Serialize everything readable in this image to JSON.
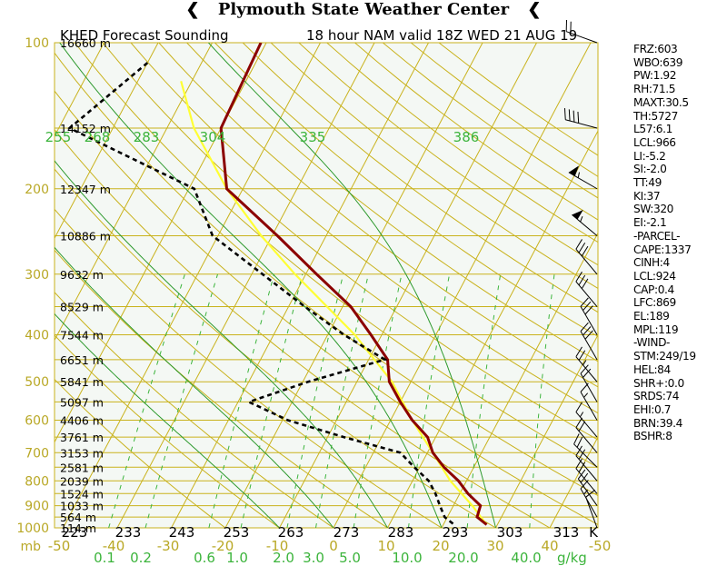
{
  "header": {
    "title": "Plymouth State Weather Center",
    "left_icon": "tornado-icon",
    "right_icon": "tornado-icon"
  },
  "plot_title_left": "KHED Forecast Sounding",
  "plot_title_right": "18 hour NAM valid 18Z WED 21 AUG 19",
  "colors": {
    "grid": "#c9b21c",
    "axis_label": "#b9a826",
    "theta": "#2e9a2e",
    "theta_label": "#3cb43c",
    "mixing": "#3cb43c",
    "temperature": "#8b0000",
    "dewpoint": "#000000",
    "parcel": "#ffff33",
    "background": "#f4f8f4"
  },
  "chart_data": {
    "type": "line",
    "diagram": "skew-t log-p",
    "pressure_levels_mb": [
      100,
      200,
      300,
      400,
      500,
      600,
      700,
      800,
      900,
      1000
    ],
    "pressure_labels": [
      "100",
      "200",
      "300",
      "400",
      "500",
      "600",
      "700",
      "800",
      "900",
      "1000"
    ],
    "pressure_axis_label": "mb",
    "temperature_ticks": [
      "-50",
      "-40",
      "-30",
      "-20",
      "-10",
      "0",
      "10",
      "20",
      "30",
      "40",
      "-50"
    ],
    "kelvin_ticks": [
      "223",
      "233",
      "243",
      "253",
      "263",
      "273",
      "283",
      "293",
      "303",
      "313"
    ],
    "kelvin_unit": "K",
    "theta_labels": [
      "255",
      "268",
      "283",
      "304",
      "335",
      "386"
    ],
    "mixing_ratio_ticks": [
      "0.1",
      "0.2",
      "0.6",
      "1.0",
      "2.0",
      "3.0",
      "5.0",
      "10.0",
      "20.0",
      "40.0"
    ],
    "mixing_ratio_unit": "g/kg",
    "height_labels": [
      {
        "p": 100,
        "label": "16660 m"
      },
      {
        "p": 150,
        "label": "14152 m"
      },
      {
        "p": 200,
        "label": "12347 m"
      },
      {
        "p": 250,
        "label": "10886 m"
      },
      {
        "p": 300,
        "label": "9632 m"
      },
      {
        "p": 350,
        "label": "8529 m"
      },
      {
        "p": 400,
        "label": "7544 m"
      },
      {
        "p": 450,
        "label": "6651 m"
      },
      {
        "p": 500,
        "label": "5841 m"
      },
      {
        "p": 550,
        "label": "5097 m"
      },
      {
        "p": 600,
        "label": "4406 m"
      },
      {
        "p": 650,
        "label": "3761 m"
      },
      {
        "p": 700,
        "label": "3153 m"
      },
      {
        "p": 750,
        "label": "2581 m"
      },
      {
        "p": 800,
        "label": "2039 m"
      },
      {
        "p": 850,
        "label": "1524 m"
      },
      {
        "p": 900,
        "label": "1033 m"
      },
      {
        "p": 950,
        "label": "564 m"
      },
      {
        "p": 1000,
        "label": "114 m"
      }
    ],
    "temperature": [
      {
        "p": 100,
        "t": -61
      },
      {
        "p": 150,
        "t": -60
      },
      {
        "p": 200,
        "t": -53
      },
      {
        "p": 250,
        "t": -39
      },
      {
        "p": 300,
        "t": -28
      },
      {
        "p": 350,
        "t": -18.5
      },
      {
        "p": 400,
        "t": -12
      },
      {
        "p": 450,
        "t": -6.5
      },
      {
        "p": 500,
        "t": -4
      },
      {
        "p": 550,
        "t": 0
      },
      {
        "p": 600,
        "t": 4
      },
      {
        "p": 650,
        "t": 8.5
      },
      {
        "p": 700,
        "t": 11
      },
      {
        "p": 750,
        "t": 14.5
      },
      {
        "p": 800,
        "t": 18.5
      },
      {
        "p": 850,
        "t": 21.5
      },
      {
        "p": 900,
        "t": 25
      },
      {
        "p": 950,
        "t": 25.5
      },
      {
        "p": 985,
        "t": 28
      }
    ],
    "dewpoint": [
      {
        "p": 110,
        "t": -80
      },
      {
        "p": 150,
        "t": -88
      },
      {
        "p": 200,
        "t": -59
      },
      {
        "p": 250,
        "t": -51
      },
      {
        "p": 300,
        "t": -38
      },
      {
        "p": 350,
        "t": -27
      },
      {
        "p": 400,
        "t": -17
      },
      {
        "p": 450,
        "t": -7
      },
      {
        "p": 500,
        "t": -19
      },
      {
        "p": 550,
        "t": -28
      },
      {
        "p": 600,
        "t": -19
      },
      {
        "p": 650,
        "t": -7
      },
      {
        "p": 700,
        "t": 5
      },
      {
        "p": 750,
        "t": 9
      },
      {
        "p": 800,
        "t": 13
      },
      {
        "p": 850,
        "t": 15.5
      },
      {
        "p": 900,
        "t": 17.5
      },
      {
        "p": 950,
        "t": 19.5
      },
      {
        "p": 985,
        "t": 22
      }
    ],
    "parcel": [
      {
        "p": 985,
        "t": 28
      },
      {
        "p": 900,
        "t": 23.5
      },
      {
        "p": 800,
        "t": 17
      },
      {
        "p": 700,
        "t": 11
      },
      {
        "p": 600,
        "t": 4
      },
      {
        "p": 500,
        "t": -3.5
      },
      {
        "p": 400,
        "t": -15
      },
      {
        "p": 300,
        "t": -32
      },
      {
        "p": 250,
        "t": -42
      },
      {
        "p": 200,
        "t": -53
      },
      {
        "p": 150,
        "t": -65
      },
      {
        "p": 120,
        "t": -72
      }
    ],
    "wind_barbs": [
      {
        "p": 100,
        "dir": 290,
        "kt": 20
      },
      {
        "p": 150,
        "dir": 285,
        "kt": 40
      },
      {
        "p": 200,
        "dir": 300,
        "kt": 55
      },
      {
        "p": 250,
        "dir": 310,
        "kt": 55
      },
      {
        "p": 300,
        "dir": 320,
        "kt": 30
      },
      {
        "p": 350,
        "dir": 320,
        "kt": 30
      },
      {
        "p": 400,
        "dir": 330,
        "kt": 30
      },
      {
        "p": 450,
        "dir": 330,
        "kt": 30
      },
      {
        "p": 500,
        "dir": 320,
        "kt": 25
      },
      {
        "p": 550,
        "dir": 330,
        "kt": 20
      },
      {
        "p": 600,
        "dir": 330,
        "kt": 15
      },
      {
        "p": 650,
        "dir": 320,
        "kt": 15
      },
      {
        "p": 700,
        "dir": 320,
        "kt": 20
      },
      {
        "p": 750,
        "dir": 315,
        "kt": 20
      },
      {
        "p": 800,
        "dir": 320,
        "kt": 20
      },
      {
        "p": 850,
        "dir": 320,
        "kt": 20
      },
      {
        "p": 900,
        "dir": 325,
        "kt": 20
      },
      {
        "p": 950,
        "dir": 330,
        "kt": 15
      },
      {
        "p": 1000,
        "dir": 340,
        "kt": 10
      }
    ]
  },
  "indices": [
    "FRZ:603",
    "WBO:639",
    "PW:1.92",
    "RH:71.5",
    "MAXT:30.5",
    "TH:5727",
    "L57:6.1",
    "LCL:966",
    "LI:-5.2",
    "SI:-2.0",
    "TT:49",
    "KI:37",
    "SW:320",
    "EI:-2.1",
    "-PARCEL-",
    "CAPE:1337",
    "CINH:4",
    "LCL:924",
    "CAP:0.4",
    "LFC:869",
    "EL:189",
    "MPL:119",
    "-WIND-",
    "STM:249/19",
    "HEL:84",
    "SHR+:0.0",
    "SRDS:74",
    "EHI:0.7",
    "BRN:39.4",
    "BSHR:8"
  ]
}
